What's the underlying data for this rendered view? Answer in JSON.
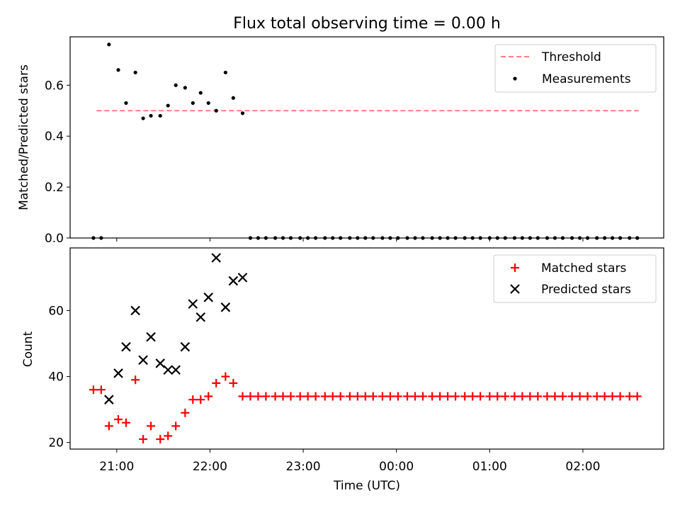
{
  "title": "Flux total observing time = 0.00 h",
  "colors": {
    "threshold": "#ff7f7f",
    "measurements": "#000000",
    "matched": "#ff0000",
    "predicted": "#000000"
  },
  "chart_data": [
    {
      "type": "scatter",
      "panel": "top",
      "ylabel": "Matched/Predicted stars",
      "ylim": [
        0,
        0.79
      ],
      "yticks": [
        0.0,
        0.2,
        0.4,
        0.6
      ],
      "ytick_labels": [
        "0.0",
        "0.2",
        "0.4",
        "0.6"
      ],
      "legend": {
        "location": "top-right",
        "entries": [
          "Threshold",
          "Measurements"
        ]
      },
      "threshold": {
        "name": "Threshold",
        "value": 0.5,
        "x_start": "20:47",
        "x_end": "02:36",
        "style": "dashed"
      },
      "series": [
        {
          "name": "Measurements",
          "x": [
            "20:45",
            "20:50",
            "20:55",
            "21:01",
            "21:06",
            "21:12",
            "21:17",
            "21:22",
            "21:28",
            "21:33",
            "21:38",
            "21:44",
            "21:49",
            "21:54",
            "21:59",
            "22:04",
            "22:10",
            "22:15",
            "22:21",
            "22:26",
            "22:31",
            "22:36",
            "22:42",
            "22:47",
            "22:52",
            "22:58",
            "23:03",
            "23:08",
            "23:14",
            "23:19",
            "23:24",
            "23:30",
            "23:35",
            "23:40",
            "23:45",
            "23:51",
            "23:56",
            "00:01",
            "00:07",
            "00:12",
            "00:17",
            "00:23",
            "00:28",
            "00:33",
            "00:38",
            "00:44",
            "00:49",
            "00:54",
            "01:00",
            "01:05",
            "01:10",
            "01:16",
            "01:21",
            "01:26",
            "01:31",
            "01:37",
            "01:42",
            "01:47",
            "01:53",
            "01:58",
            "02:03",
            "02:09",
            "02:14",
            "02:19",
            "02:24",
            "02:30",
            "02:35"
          ],
          "y": [
            0.0,
            0.0,
            0.76,
            0.66,
            0.53,
            0.65,
            0.47,
            0.48,
            0.48,
            0.52,
            0.6,
            0.59,
            0.53,
            0.57,
            0.53,
            0.5,
            0.65,
            0.55,
            0.49,
            0.0,
            0.0,
            0.0,
            0.0,
            0.0,
            0.0,
            0.0,
            0.0,
            0.0,
            0.0,
            0.0,
            0.0,
            0.0,
            0.0,
            0.0,
            0.0,
            0.0,
            0.0,
            0.0,
            0.0,
            0.0,
            0.0,
            0.0,
            0.0,
            0.0,
            0.0,
            0.0,
            0.0,
            0.0,
            0.0,
            0.0,
            0.0,
            0.0,
            0.0,
            0.0,
            0.0,
            0.0,
            0.0,
            0.0,
            0.0,
            0.0,
            0.0,
            0.0,
            0.0,
            0.0,
            0.0,
            0.0,
            0.0
          ]
        }
      ]
    },
    {
      "type": "scatter",
      "panel": "bottom",
      "xlabel": "Time (UTC)",
      "ylabel": "Count",
      "ylim": [
        18,
        79
      ],
      "yticks": [
        20,
        40,
        60
      ],
      "ytick_labels": [
        "20",
        "40",
        "60"
      ],
      "xlim": [
        "20:30",
        "02:52"
      ],
      "xticks": [
        "21:00",
        "22:00",
        "23:00",
        "00:00",
        "01:00",
        "02:00"
      ],
      "legend": {
        "location": "top-right",
        "entries": [
          "Matched stars",
          "Predicted stars"
        ]
      },
      "series": [
        {
          "name": "Matched stars",
          "marker": "plus",
          "x": [
            "20:45",
            "20:50",
            "20:55",
            "21:01",
            "21:06",
            "21:12",
            "21:17",
            "21:22",
            "21:28",
            "21:33",
            "21:38",
            "21:44",
            "21:49",
            "21:54",
            "21:59",
            "22:04",
            "22:10",
            "22:15",
            "22:21",
            "22:26",
            "22:31",
            "22:36",
            "22:42",
            "22:47",
            "22:52",
            "22:58",
            "23:03",
            "23:08",
            "23:14",
            "23:19",
            "23:24",
            "23:30",
            "23:35",
            "23:40",
            "23:45",
            "23:51",
            "23:56",
            "00:01",
            "00:07",
            "00:12",
            "00:17",
            "00:23",
            "00:28",
            "00:33",
            "00:38",
            "00:44",
            "00:49",
            "00:54",
            "01:00",
            "01:05",
            "01:10",
            "01:16",
            "01:21",
            "01:26",
            "01:31",
            "01:37",
            "01:42",
            "01:47",
            "01:53",
            "01:58",
            "02:03",
            "02:09",
            "02:14",
            "02:19",
            "02:24",
            "02:30",
            "02:35"
          ],
          "y": [
            36,
            36,
            25,
            27,
            26,
            39,
            21,
            25,
            21,
            22,
            25,
            29,
            33,
            33,
            34,
            38,
            40,
            38,
            34,
            34,
            34,
            34,
            34,
            34,
            34,
            34,
            34,
            34,
            34,
            34,
            34,
            34,
            34,
            34,
            34,
            34,
            34,
            34,
            34,
            34,
            34,
            34,
            34,
            34,
            34,
            34,
            34,
            34,
            34,
            34,
            34,
            34,
            34,
            34,
            34,
            34,
            34,
            34,
            34,
            34,
            34,
            34,
            34,
            34,
            34,
            34,
            34
          ]
        },
        {
          "name": "Predicted stars",
          "marker": "x",
          "x": [
            "20:55",
            "21:01",
            "21:06",
            "21:12",
            "21:17",
            "21:22",
            "21:28",
            "21:33",
            "21:38",
            "21:44",
            "21:49",
            "21:54",
            "21:59",
            "22:04",
            "22:10",
            "22:15",
            "22:21"
          ],
          "y": [
            33,
            41,
            49,
            60,
            45,
            52,
            44,
            42,
            42,
            49,
            62,
            58,
            64,
            76,
            61,
            69,
            70
          ]
        }
      ]
    }
  ]
}
